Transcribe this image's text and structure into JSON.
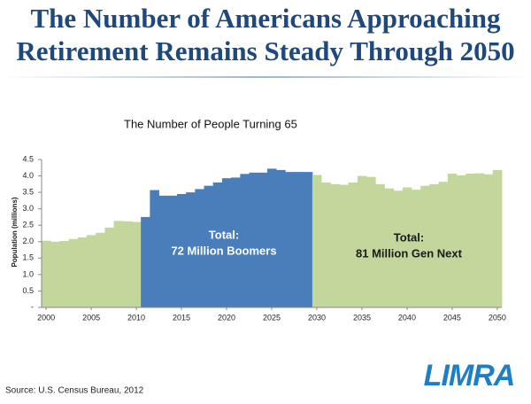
{
  "header": {
    "title_lines": [
      "The Number of Americans Approaching",
      "Retirement Remains Steady Through 2050"
    ]
  },
  "chart_data": {
    "type": "bar",
    "title": "The Number of People Turning 65",
    "ylabel": "Population (millions)",
    "x": [
      2000,
      2001,
      2002,
      2003,
      2004,
      2005,
      2006,
      2007,
      2008,
      2009,
      2010,
      2011,
      2012,
      2013,
      2014,
      2015,
      2016,
      2017,
      2018,
      2019,
      2020,
      2021,
      2022,
      2023,
      2024,
      2025,
      2026,
      2027,
      2028,
      2029,
      2030,
      2031,
      2032,
      2033,
      2034,
      2035,
      2036,
      2037,
      2038,
      2039,
      2040,
      2041,
      2042,
      2043,
      2044,
      2045,
      2046,
      2047,
      2048,
      2049,
      2050
    ],
    "values": [
      2.03,
      2.0,
      2.02,
      2.08,
      2.13,
      2.2,
      2.27,
      2.43,
      2.63,
      2.62,
      2.6,
      2.75,
      3.57,
      3.4,
      3.4,
      3.45,
      3.5,
      3.6,
      3.7,
      3.8,
      3.93,
      3.95,
      4.06,
      4.1,
      4.1,
      4.22,
      4.18,
      4.12,
      4.12,
      4.12,
      4.03,
      3.8,
      3.75,
      3.73,
      3.8,
      4.0,
      3.97,
      3.75,
      3.62,
      3.55,
      3.65,
      3.58,
      3.7,
      3.75,
      3.82,
      4.07,
      4.02,
      4.07,
      4.08,
      4.05,
      4.18
    ],
    "color": "#c3d69b",
    "highlight": {
      "from": 2011,
      "to": 2029,
      "color": "#4a7ebb"
    },
    "xlim": [
      1999.5,
      2050.5
    ],
    "xticks": [
      2000,
      2005,
      2010,
      2015,
      2020,
      2025,
      2030,
      2035,
      2040,
      2045,
      2050
    ],
    "ylim": [
      0,
      4.5
    ],
    "yticks": [
      {
        "value": 0,
        "label": "-"
      },
      0.5,
      {
        "value": 1,
        "label": "1.0"
      },
      1.5,
      {
        "value": 2,
        "label": "2.0"
      },
      2.5,
      {
        "value": 3,
        "label": "3.0"
      },
      3.5,
      {
        "value": 4,
        "label": "4.0"
      },
      4.5
    ],
    "annotations": [
      {
        "lines": [
          "Total:",
          "72 Million Boomers"
        ]
      },
      {
        "lines": [
          "Total:",
          "81 Million Gen Next"
        ]
      }
    ]
  },
  "footer": {
    "source": "Source: U.S. Census Bureau, 2012",
    "logo": "LIMRA"
  }
}
